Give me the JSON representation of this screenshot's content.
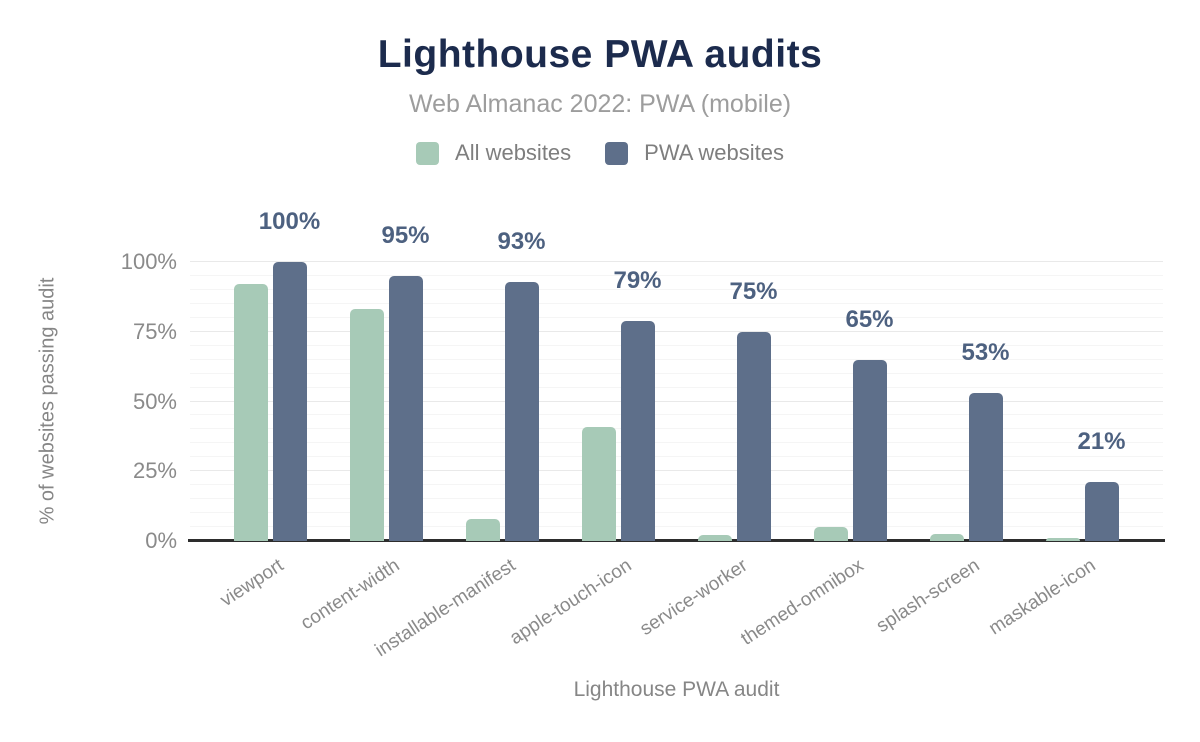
{
  "chart_data": {
    "type": "bar",
    "title": "Lighthouse PWA audits",
    "subtitle": "Web Almanac 2022: PWA (mobile)",
    "xlabel": "Lighthouse PWA audit",
    "ylabel": "% of websites passing audit",
    "ylim": [
      0,
      100
    ],
    "yticks": [
      "0%",
      "25%",
      "50%",
      "75%",
      "100%"
    ],
    "grid": "horizontal, minor every 5%, major every 25%",
    "legend_position": "top",
    "categories": [
      "viewport",
      "content-width",
      "installable-manifest",
      "apple-touch-icon",
      "service-worker",
      "themed-omnibox",
      "splash-screen",
      "maskable-icon"
    ],
    "series": [
      {
        "name": "All websites",
        "color": "#a7cab7",
        "values": [
          92,
          83,
          8,
          41,
          2,
          5,
          2.5,
          1
        ]
      },
      {
        "name": "PWA websites",
        "color": "#5e6f8a",
        "values": [
          100,
          95,
          93,
          79,
          75,
          65,
          53,
          21
        ],
        "labels": [
          "100%",
          "95%",
          "93%",
          "79%",
          "75%",
          "65%",
          "53%",
          "21%"
        ]
      }
    ],
    "data_label_color": "#4d6180",
    "title_color": "#1c2b4d"
  }
}
